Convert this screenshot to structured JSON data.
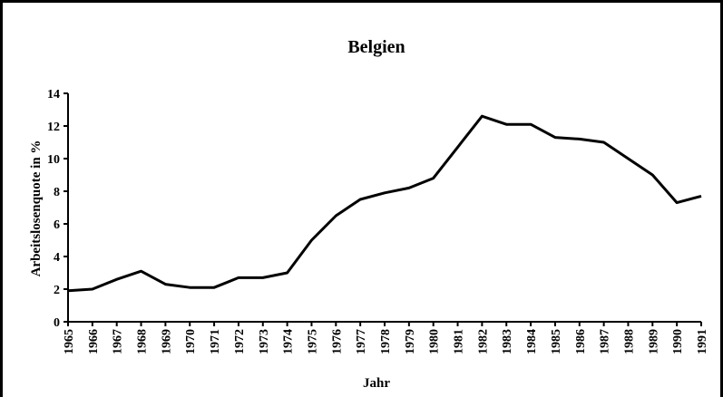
{
  "chart_data": {
    "type": "line",
    "title": "Belgien",
    "y_label": "Arbeitslosenquote in %",
    "x_label": "Jahr",
    "categories": [
      "1965",
      "1966",
      "1967",
      "1968",
      "1969",
      "1970",
      "1971",
      "1972",
      "1973",
      "1974",
      "1975",
      "1976",
      "1977",
      "1978",
      "1979",
      "1980",
      "1981",
      "1982",
      "1983",
      "1984",
      "1985",
      "1986",
      "1987",
      "1988",
      "1989",
      "1990",
      "1991"
    ],
    "values": [
      1.9,
      2.0,
      2.6,
      3.1,
      2.3,
      2.1,
      2.1,
      2.7,
      2.7,
      3.0,
      5.0,
      6.5,
      7.5,
      7.9,
      8.2,
      8.8,
      10.7,
      12.6,
      12.1,
      12.1,
      11.3,
      11.2,
      11.0,
      10.0,
      9.0,
      7.3,
      7.7
    ],
    "color": "#000000",
    "ylim": [
      0,
      14
    ],
    "yticks": [
      0,
      2,
      4,
      6,
      8,
      10,
      12,
      14
    ],
    "grid": false
  }
}
